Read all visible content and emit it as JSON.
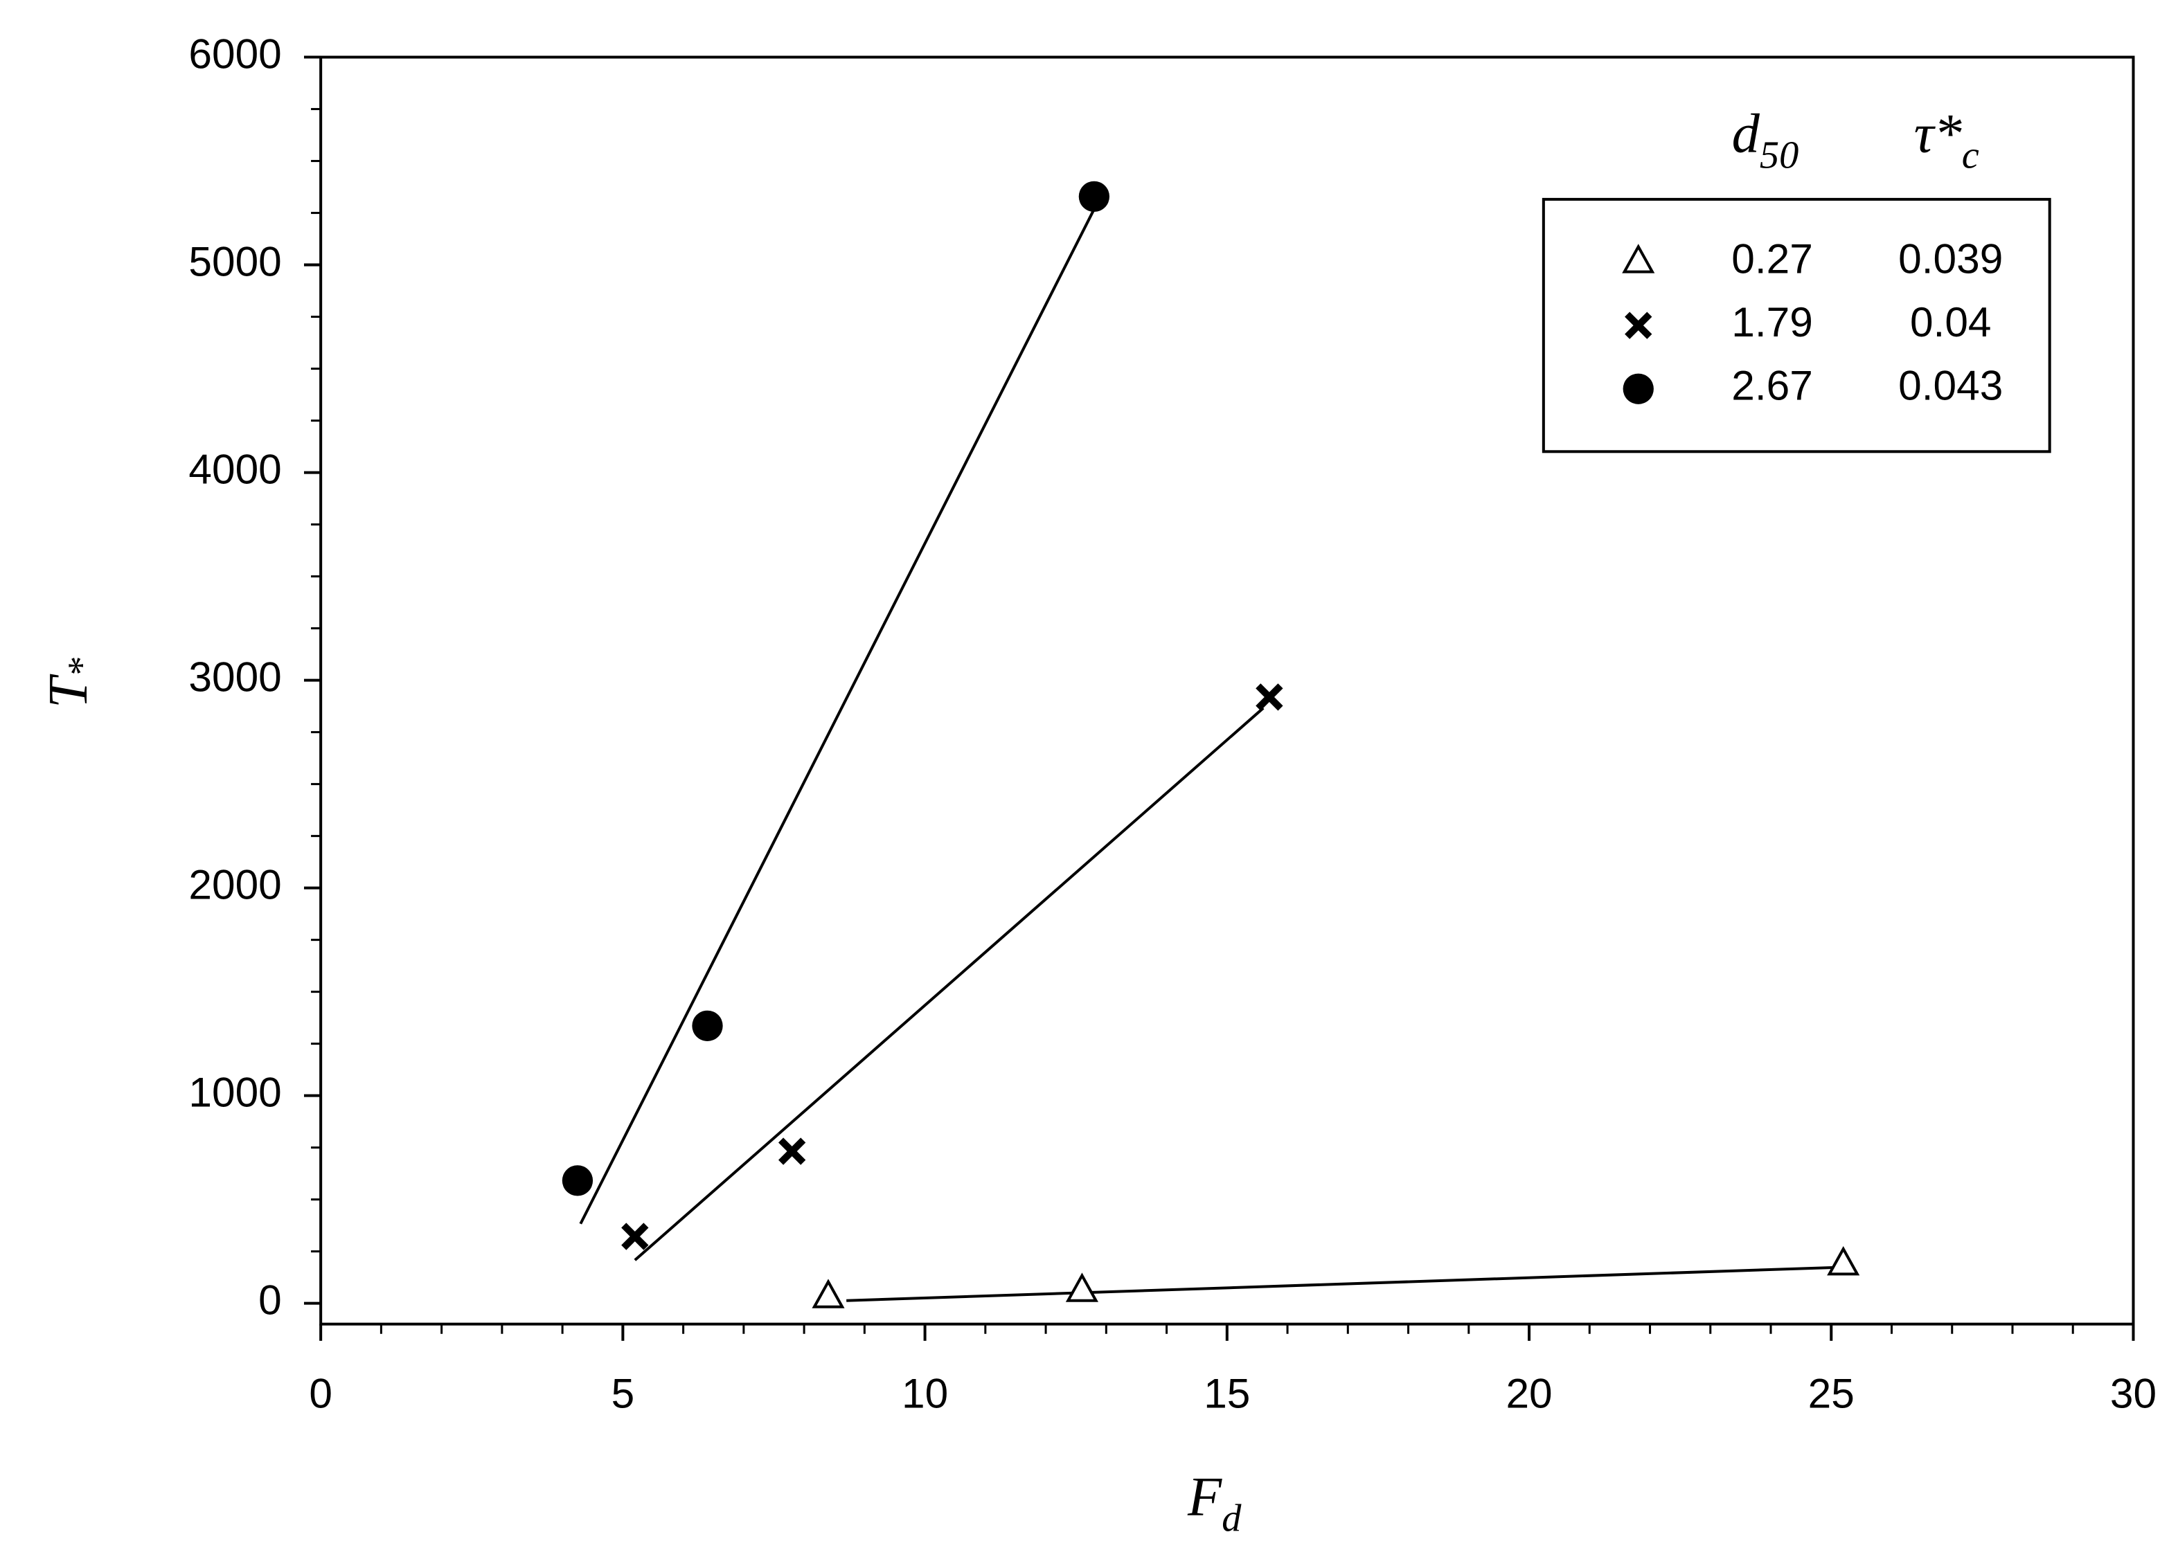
{
  "chart_data": {
    "type": "scatter",
    "x_label": {
      "text": "F",
      "sub": "d"
    },
    "y_label": {
      "text": "T",
      "sub": "*"
    },
    "legend_headers": [
      {
        "text": "d",
        "sub": "50"
      },
      {
        "text": "τ*",
        "sub": "c"
      }
    ],
    "legend_position": "upper right",
    "xlim": [
      0,
      30
    ],
    "xticks": [
      0,
      5,
      10,
      15,
      20,
      25,
      30
    ],
    "xminorticks": [
      1,
      2,
      3,
      4,
      6,
      7,
      8,
      9,
      11,
      12,
      13,
      14,
      16,
      17,
      18,
      19,
      21,
      22,
      23,
      24,
      26,
      27,
      28,
      29
    ],
    "ylim": [
      -100,
      6000
    ],
    "yticks": [
      0,
      1000,
      2000,
      3000,
      4000,
      5000,
      6000
    ],
    "yminorticks": [
      250,
      500,
      750,
      1250,
      1500,
      1750,
      2250,
      2500,
      2750,
      3250,
      3500,
      3750,
      4250,
      4500,
      4750,
      5250,
      5500,
      5750
    ],
    "series": [
      {
        "name": "0.27",
        "tau": "0.039",
        "marker": "triangle",
        "color": "#000000",
        "x": [
          8.4,
          12.6,
          25.2
        ],
        "values": [
          30,
          60,
          188
        ],
        "fit_x": [
          8.7,
          25.2
        ],
        "fit_y": [
          13,
          174
        ]
      },
      {
        "name": "1.79",
        "tau": "0.04",
        "marker": "cross",
        "color": "#000000",
        "x": [
          5.2,
          7.8,
          15.7
        ],
        "values": [
          322,
          732,
          2919
        ],
        "fit_x": [
          5.2,
          15.6
        ],
        "fit_y": [
          208,
          2866
        ]
      },
      {
        "name": "2.67",
        "tau": "0.043",
        "marker": "circle",
        "color": "#000000",
        "x": [
          4.25,
          6.4,
          12.8
        ],
        "values": [
          591,
          1336,
          5329
        ],
        "fit_x": [
          4.3,
          12.8
        ],
        "fit_y": [
          383,
          5268
        ]
      }
    ]
  }
}
